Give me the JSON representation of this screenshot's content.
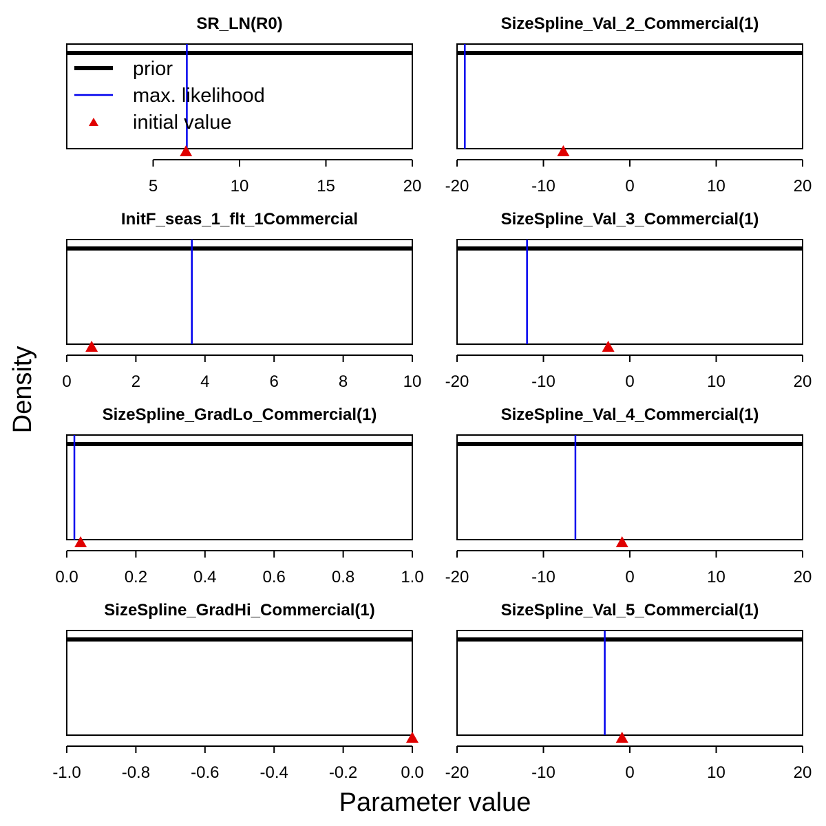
{
  "figure": {
    "xlabel": "Parameter value",
    "ylabel": "Density"
  },
  "legend": {
    "items": [
      {
        "label": "prior",
        "kind": "thick-line",
        "color": "#000000"
      },
      {
        "label": "max. likelihood",
        "kind": "line",
        "color": "#0000ee"
      },
      {
        "label": "initial value",
        "kind": "triangle",
        "color": "#e00000"
      }
    ]
  },
  "colors": {
    "prior": "#000000",
    "mle": "#0000ee",
    "initial": "#e00000"
  },
  "chart_data": [
    {
      "type": "line",
      "title": "SR_LN(R0)",
      "xlim": [
        0,
        20
      ],
      "ticks": [
        5,
        10,
        15,
        20
      ],
      "tick_labels": [
        "5",
        "10",
        "15",
        "20"
      ],
      "prior": "uniform",
      "mle": 6.95,
      "initial": 6.9,
      "legend": true
    },
    {
      "type": "line",
      "title": "SizeSpline_Val_2_Commercial(1)",
      "xlim": [
        -20,
        20
      ],
      "ticks": [
        -20,
        -10,
        0,
        10,
        20
      ],
      "tick_labels": [
        "-20",
        "-10",
        "0",
        "10",
        "20"
      ],
      "prior": "uniform",
      "mle": -19.1,
      "initial": -7.7
    },
    {
      "type": "line",
      "title": "InitF_seas_1_flt_1Commercial",
      "xlim": [
        0,
        10
      ],
      "ticks": [
        0,
        2,
        4,
        6,
        8,
        10
      ],
      "tick_labels": [
        "0",
        "2",
        "4",
        "6",
        "8",
        "10"
      ],
      "prior": "uniform",
      "mle": 3.62,
      "initial": 0.72
    },
    {
      "type": "line",
      "title": "SizeSpline_Val_3_Commercial(1)",
      "xlim": [
        -20,
        20
      ],
      "ticks": [
        -20,
        -10,
        0,
        10,
        20
      ],
      "tick_labels": [
        "-20",
        "-10",
        "0",
        "10",
        "20"
      ],
      "prior": "uniform",
      "mle": -11.9,
      "initial": -2.5
    },
    {
      "type": "line",
      "title": "SizeSpline_GradLo_Commercial(1)",
      "xlim": [
        0,
        1
      ],
      "ticks": [
        0,
        0.2,
        0.4,
        0.6,
        0.8,
        1.0
      ],
      "tick_labels": [
        "0.0",
        "0.2",
        "0.4",
        "0.6",
        "0.8",
        "1.0"
      ],
      "prior": "uniform",
      "mle": 0.022,
      "initial": 0.04
    },
    {
      "type": "line",
      "title": "SizeSpline_Val_4_Commercial(1)",
      "xlim": [
        -20,
        20
      ],
      "ticks": [
        -20,
        -10,
        0,
        10,
        20
      ],
      "tick_labels": [
        "-20",
        "-10",
        "0",
        "10",
        "20"
      ],
      "prior": "uniform",
      "mle": -6.3,
      "initial": -0.9
    },
    {
      "type": "line",
      "title": "SizeSpline_GradHi_Commercial(1)",
      "xlim": [
        -1,
        0
      ],
      "ticks": [
        -1,
        -0.8,
        -0.6,
        -0.4,
        -0.2,
        0
      ],
      "tick_labels": [
        "-1.0",
        "-0.8",
        "-0.6",
        "-0.4",
        "-0.2",
        "0.0"
      ],
      "prior": "uniform",
      "mle": null,
      "initial": 0.0
    },
    {
      "type": "line",
      "title": "SizeSpline_Val_5_Commercial(1)",
      "xlim": [
        -20,
        20
      ],
      "ticks": [
        -20,
        -10,
        0,
        10,
        20
      ],
      "tick_labels": [
        "-20",
        "-10",
        "0",
        "10",
        "20"
      ],
      "prior": "uniform",
      "mle": -2.9,
      "initial": -0.9
    }
  ]
}
